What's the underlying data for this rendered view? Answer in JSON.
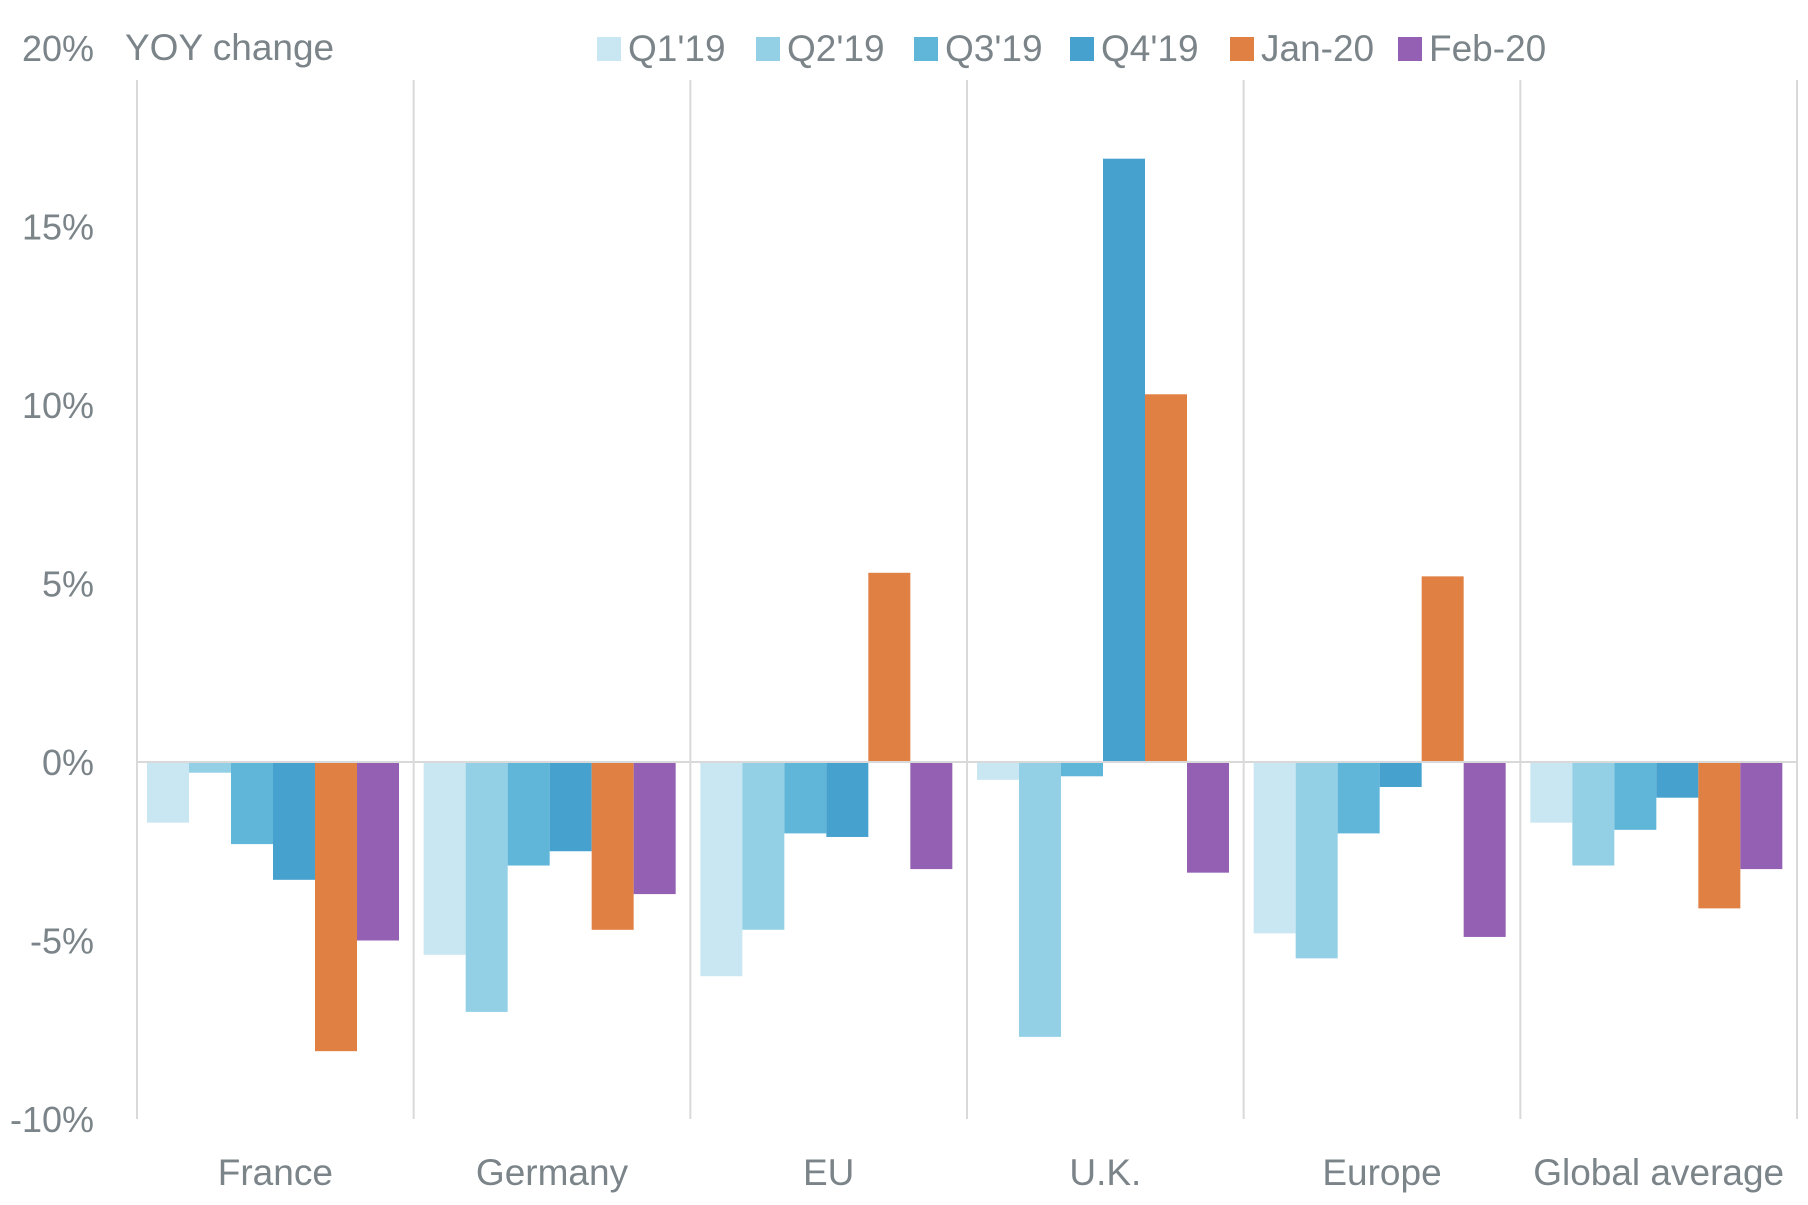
{
  "chart_data": {
    "type": "bar",
    "ylabel": "YOY change",
    "ylim": [
      -10,
      20
    ],
    "yticks": [
      -10,
      -5,
      0,
      5,
      10,
      15,
      20
    ],
    "ytick_labels": [
      "-10%",
      "-5%",
      "0%",
      "5%",
      "10%",
      "15%",
      "20%"
    ],
    "categories": [
      "France",
      "Germany",
      "EU",
      "U.K.",
      "Europe",
      "Global average"
    ],
    "legend_position": "top",
    "series": [
      {
        "name": "Q1'19",
        "color": "#c9e7f2",
        "values": [
          -1.7,
          -5.4,
          -6.0,
          -0.5,
          -4.8,
          -1.7
        ]
      },
      {
        "name": "Q2'19",
        "color": "#93d0e6",
        "values": [
          -0.3,
          -7.0,
          -4.7,
          -7.7,
          -5.5,
          -2.9
        ]
      },
      {
        "name": "Q3'19",
        "color": "#5fb6d9",
        "values": [
          -2.3,
          -2.9,
          -2.0,
          -0.4,
          -2.0,
          -1.9
        ]
      },
      {
        "name": "Q4'19",
        "color": "#46a1cf",
        "values": [
          -3.3,
          -2.5,
          -2.1,
          16.9,
          -0.7,
          -1.0
        ]
      },
      {
        "name": "Jan-20",
        "color": "#e08043",
        "values": [
          -8.1,
          -4.7,
          5.3,
          10.3,
          5.2,
          -4.1
        ]
      },
      {
        "name": "Feb-20",
        "color": "#9360b3",
        "values": [
          -5.0,
          -3.7,
          -3.0,
          -3.1,
          -4.9,
          -3.0
        ]
      }
    ]
  }
}
